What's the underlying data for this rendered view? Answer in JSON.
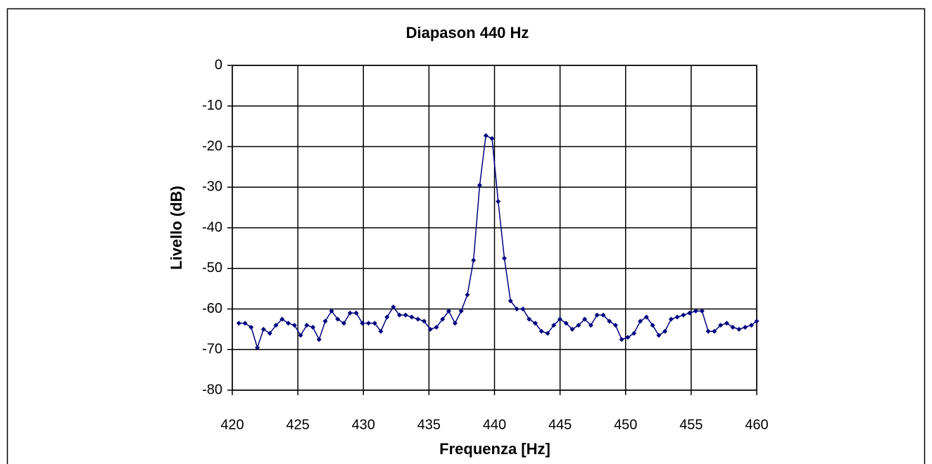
{
  "chart_data": {
    "type": "line",
    "title": "Diapason 440 Hz",
    "xlabel": "Frequenza [Hz]",
    "ylabel": "Livello (dB)",
    "x": [
      420.5,
      420.97,
      421.44,
      421.91,
      422.38,
      422.86,
      423.33,
      423.8,
      424.27,
      424.74,
      425.21,
      425.68,
      426.15,
      426.62,
      427.09,
      427.57,
      428.04,
      428.51,
      428.98,
      429.45,
      429.92,
      430.39,
      430.86,
      431.33,
      431.8,
      432.28,
      432.75,
      433.22,
      433.69,
      434.16,
      434.63,
      435.1,
      435.57,
      436.04,
      436.51,
      436.99,
      437.46,
      437.93,
      438.4,
      438.87,
      439.34,
      439.81,
      440.28,
      440.75,
      441.22,
      441.7,
      442.17,
      442.64,
      443.11,
      443.58,
      444.05,
      444.52,
      444.99,
      445.46,
      445.93,
      446.41,
      446.88,
      447.35,
      447.82,
      448.29,
      448.76,
      449.23,
      449.7,
      450.17,
      450.64,
      451.12,
      451.59,
      452.06,
      452.53,
      453,
      453.47,
      453.94,
      454.41,
      454.88,
      455.35,
      455.83,
      456.3,
      456.77,
      457.24,
      457.71,
      458.18,
      458.65,
      459.12,
      459.59,
      460
    ],
    "series": [
      {
        "color": "#000080",
        "values": [
          -63.5,
          -63.5,
          -64.5,
          -69.5,
          -65,
          -66,
          -64,
          -62.5,
          -63.5,
          -64,
          -66.5,
          -64,
          -64.5,
          -67.5,
          -63,
          -60.5,
          -62.5,
          -63.5,
          -61,
          -61,
          -63.5,
          -63.5,
          -63.5,
          -65.5,
          -62,
          -59.5,
          -61.5,
          -61.5,
          -62,
          -62.5,
          -63,
          -65,
          -64.5,
          -62.5,
          -60.5,
          -63.5,
          -60.5,
          -56.5,
          -48,
          -29.5,
          -17.3,
          -18,
          -33.5,
          -47.5,
          -58,
          -60,
          -60,
          -62.5,
          -63.5,
          -65.5,
          -66,
          -64,
          -62.5,
          -63.5,
          -65,
          -64,
          -62.5,
          -64,
          -61.5,
          -61.5,
          -63,
          -64,
          -67.5,
          -67,
          -66,
          -63,
          -62,
          -64,
          -66.5,
          -65.5,
          -62.5,
          -62,
          -61.5,
          -61,
          -60.5,
          -60.5,
          -65.5,
          -65.5,
          -64,
          -63.5,
          -64.5,
          -65,
          -64.5,
          -64,
          -63
        ]
      }
    ],
    "xlim": [
      420,
      460
    ],
    "xticks": [
      420,
      425,
      430,
      435,
      440,
      445,
      450,
      455,
      460
    ],
    "ylim": [
      -80,
      0
    ],
    "yticks": [
      0,
      -10,
      -20,
      -30,
      -40,
      -50,
      -60,
      -70,
      -80
    ],
    "grid": true,
    "markers": true
  }
}
